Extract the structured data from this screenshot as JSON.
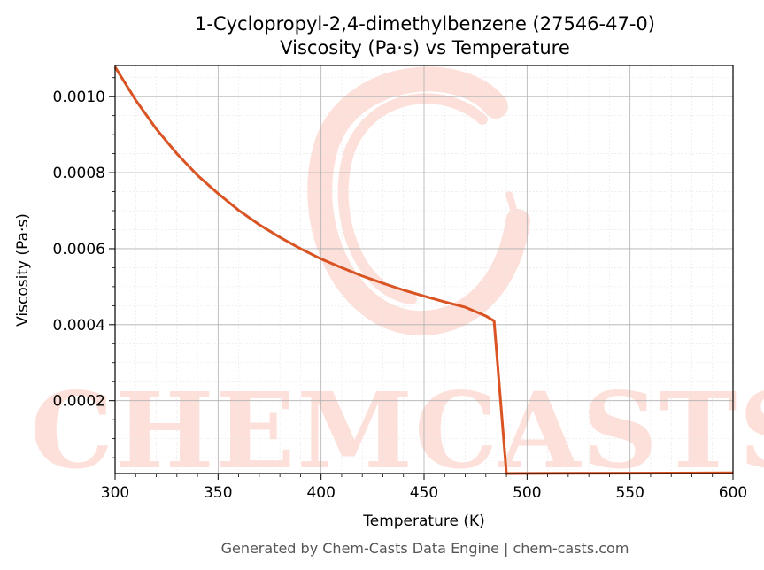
{
  "chart_data": {
    "type": "line",
    "title": "1-Cyclopropyl-2,4-dimethylbenzene (27546-47-0)",
    "subtitle": "Viscosity (Pa·s) vs Temperature",
    "xlabel": "Temperature (K)",
    "ylabel": "Viscosity (Pa·s)",
    "xlim": [
      300,
      600
    ],
    "ylim": [
      8.3e-06,
      0.001082
    ],
    "x_ticks": [
      300,
      350,
      400,
      450,
      500,
      550,
      600
    ],
    "x_tick_labels": [
      "300",
      "350",
      "400",
      "450",
      "500",
      "550",
      "600"
    ],
    "y_ticks": [
      0.0002,
      0.0004,
      0.0006,
      0.0008,
      0.001
    ],
    "y_tick_labels": [
      "0.0002",
      "0.0004",
      "0.0006",
      "0.0008",
      "0.0010"
    ],
    "grid": true,
    "series": [
      {
        "color": "#d95323",
        "x": [
          300,
          310,
          320,
          330,
          340,
          350,
          360,
          370,
          380,
          390,
          400,
          410,
          420,
          430,
          440,
          450,
          460,
          470,
          480,
          484,
          490,
          500,
          550,
          600
        ],
        "y": [
          0.001078,
          0.000991,
          0.000915,
          0.00085,
          0.000793,
          0.000745,
          0.000701,
          0.000663,
          0.00063,
          0.0006,
          0.000573,
          0.00055,
          0.000528,
          0.000509,
          0.000491,
          0.000475,
          0.00046,
          0.000446,
          0.000423,
          0.00041,
          8.3e-06,
          8.5e-06,
          9.3e-06,
          1e-05
        ]
      }
    ]
  },
  "watermark": {
    "text": "CHEMCASTS",
    "color": "#fde0da"
  },
  "footer": "Generated by Chem-Casts Data Engine | chem-casts.com"
}
